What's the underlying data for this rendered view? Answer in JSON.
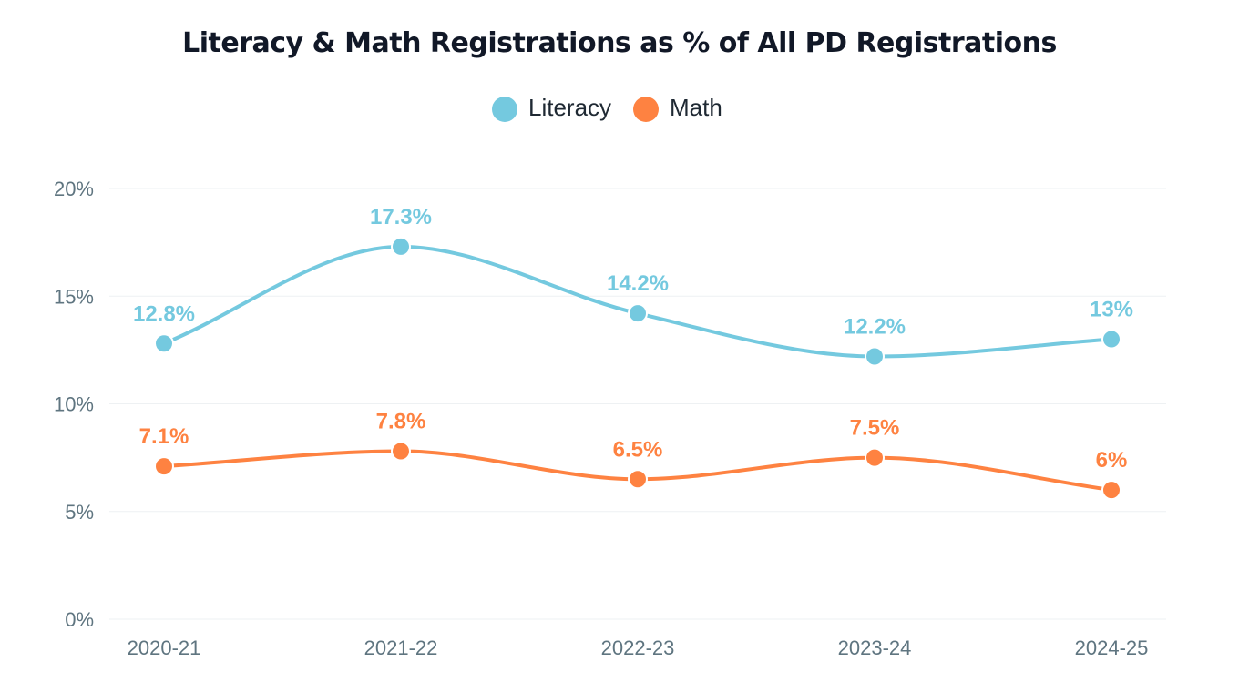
{
  "chart_data": {
    "type": "line",
    "title": "Literacy & Math Registrations as % of All PD Registrations",
    "categories": [
      "2020-21",
      "2021-22",
      "2022-23",
      "2023-24",
      "2024-25"
    ],
    "series": [
      {
        "name": "Literacy",
        "color": "#74c9df",
        "values": [
          12.8,
          17.3,
          14.2,
          12.2,
          13.0
        ],
        "labels": [
          "12.8%",
          "17.3%",
          "14.2%",
          "12.2%",
          "13%"
        ]
      },
      {
        "name": "Math",
        "color": "#fe8241",
        "values": [
          7.1,
          7.8,
          6.5,
          7.5,
          6.0
        ],
        "labels": [
          "7.1%",
          "7.8%",
          "6.5%",
          "7.5%",
          "6%"
        ]
      }
    ],
    "ylim": [
      0,
      20
    ],
    "yticks": [
      0,
      5,
      10,
      15,
      20
    ],
    "ytick_labels": [
      "0%",
      "5%",
      "10%",
      "15%",
      "20%"
    ],
    "xlabel": "",
    "ylabel": "",
    "grid": true,
    "legend_position": "top-center"
  }
}
